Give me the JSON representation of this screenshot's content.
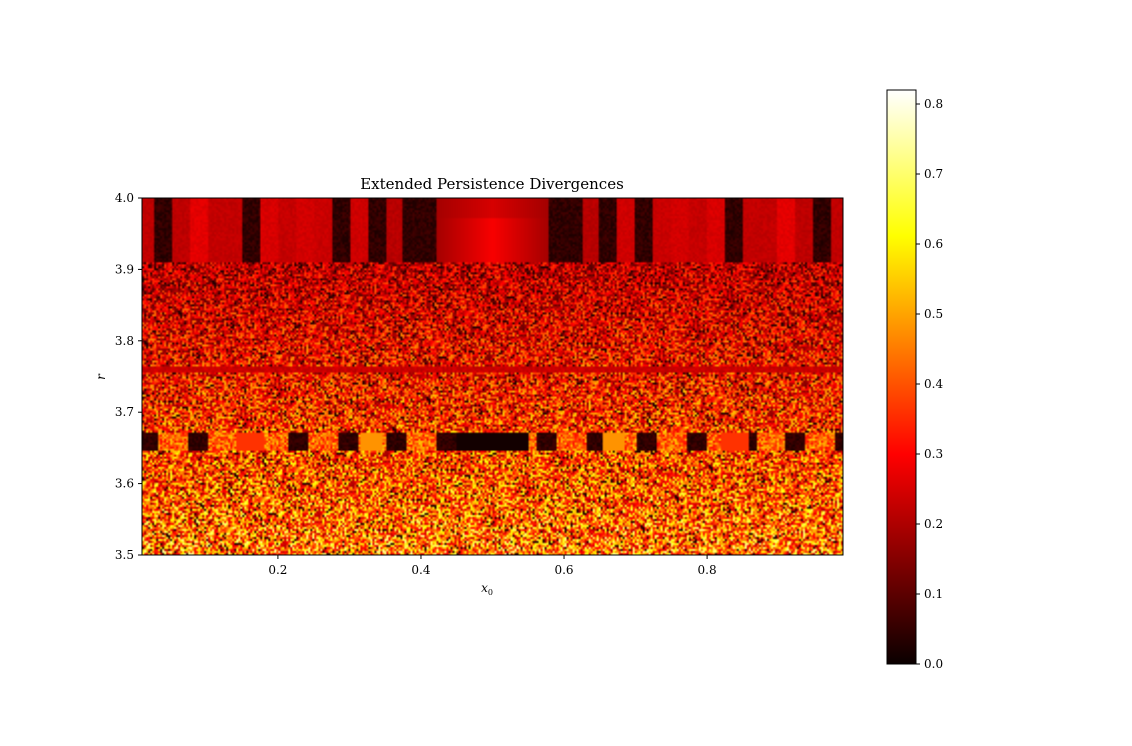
{
  "chart_data": {
    "type": "heatmap",
    "title": "Extended Persistence Divergences",
    "xlabel": "x",
    "xlabel_sub": "0",
    "ylabel": "r",
    "xlim": [
      0.01,
      0.99
    ],
    "ylim": [
      3.5,
      4.0
    ],
    "x_ticks": [
      0.2,
      0.4,
      0.6,
      0.8
    ],
    "x_tick_labels": [
      "0.2",
      "0.4",
      "0.6",
      "0.8"
    ],
    "y_ticks": [
      3.5,
      3.6,
      3.7,
      3.8,
      3.9,
      4.0
    ],
    "y_tick_labels": [
      "3.5",
      "3.6",
      "3.7",
      "3.8",
      "3.9",
      "4.0"
    ],
    "colormap": "hot",
    "colorbar": {
      "range": [
        0.0,
        0.82
      ],
      "ticks": [
        0.0,
        0.1,
        0.2,
        0.3,
        0.4,
        0.5,
        0.6,
        0.7,
        0.8
      ],
      "tick_labels": [
        "0.0",
        "0.1",
        "0.2",
        "0.3",
        "0.4",
        "0.5",
        "0.6",
        "0.7",
        "0.8"
      ]
    },
    "regions": [
      {
        "r_range": [
          3.91,
          4.0
        ],
        "pattern": "dark vertical bands of low values (0.0-0.2)"
      },
      {
        "r_range": [
          3.5,
          3.91
        ],
        "pattern": "noisy field; values increase toward lower r (about 0.2-0.6)"
      },
      {
        "r_range": [
          3.645,
          3.67
        ],
        "pattern": "periodic window with black band near x0 = 0.5 and orange triangles"
      }
    ]
  }
}
